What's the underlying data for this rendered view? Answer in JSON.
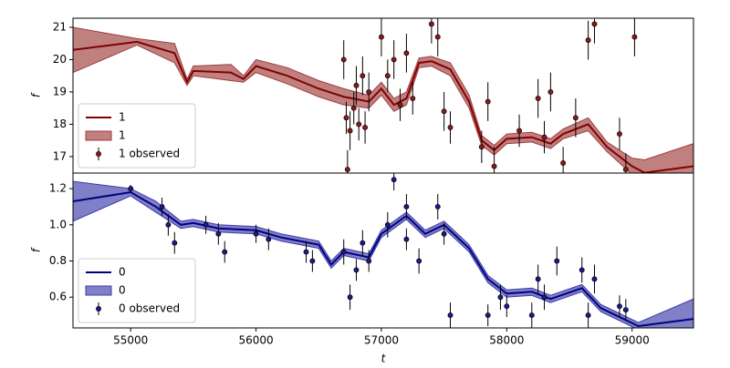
{
  "chart_data": [
    {
      "type": "line",
      "ylabel": "f",
      "xlim": [
        54540,
        59490
      ],
      "ylim": [
        16.49,
        21.28
      ],
      "yticks": [
        17,
        18,
        19,
        20,
        21
      ],
      "legend": "lower left",
      "x": [
        54540,
        55050,
        55350,
        55450,
        55500,
        55800,
        55900,
        56000,
        56250,
        56500,
        56700,
        56900,
        57000,
        57100,
        57200,
        57300,
        57400,
        57550,
        57700,
        57800,
        57900,
        58000,
        58200,
        58350,
        58450,
        58650,
        58800,
        59000,
        59100,
        59490
      ],
      "series": [
        {
          "name": "1",
          "color": "#800000",
          "values": [
            20.3,
            20.55,
            20.2,
            19.3,
            19.65,
            19.6,
            19.4,
            19.8,
            19.5,
            19.1,
            18.85,
            18.7,
            19.1,
            18.6,
            18.8,
            19.9,
            19.95,
            19.7,
            18.7,
            17.5,
            17.2,
            17.55,
            17.6,
            17.4,
            17.7,
            18.0,
            17.3,
            16.7,
            16.5,
            16.7
          ]
        },
        {
          "name": "1",
          "color": "#a03c3c",
          "lower": [
            19.6,
            20.45,
            19.9,
            19.2,
            19.5,
            19.35,
            19.3,
            19.6,
            19.25,
            18.85,
            18.6,
            18.5,
            18.9,
            18.4,
            18.6,
            19.75,
            19.8,
            19.5,
            18.5,
            17.35,
            17.05,
            17.4,
            17.45,
            17.25,
            17.55,
            17.8,
            17.15,
            16.45,
            16.1,
            15.9
          ],
          "upper": [
            21.0,
            20.65,
            20.5,
            19.4,
            19.8,
            19.85,
            19.5,
            20.0,
            19.75,
            19.35,
            19.1,
            18.9,
            19.3,
            18.8,
            19.0,
            20.05,
            20.1,
            19.9,
            18.9,
            17.65,
            17.35,
            17.7,
            17.75,
            17.55,
            17.85,
            18.2,
            17.45,
            16.95,
            16.9,
            17.4
          ]
        },
        {
          "name": "1 observed",
          "color": "#8b1a1a",
          "x": [
            56700,
            56720,
            56730,
            56750,
            56780,
            56800,
            56820,
            56850,
            56870,
            56900,
            57000,
            57050,
            57100,
            57150,
            57200,
            57250,
            57400,
            57450,
            57500,
            57550,
            57800,
            57850,
            57900,
            58100,
            58250,
            58300,
            58350,
            58450,
            58550,
            58650,
            58700,
            58900,
            58950,
            59020
          ],
          "values": [
            20.0,
            18.2,
            16.6,
            17.8,
            18.5,
            19.2,
            18.0,
            19.5,
            17.9,
            19.0,
            20.7,
            19.5,
            20.0,
            18.6,
            20.2,
            18.8,
            21.1,
            20.7,
            18.4,
            17.9,
            17.3,
            18.7,
            16.7,
            17.8,
            18.8,
            17.6,
            19.0,
            16.8,
            18.2,
            20.6,
            21.1,
            17.7,
            16.6,
            20.7
          ],
          "err": [
            0.6,
            0.5,
            0.6,
            0.6,
            0.5,
            0.6,
            0.5,
            0.6,
            0.5,
            0.6,
            0.6,
            0.5,
            0.6,
            0.5,
            0.6,
            0.5,
            0.6,
            0.6,
            0.6,
            0.5,
            0.5,
            0.6,
            0.6,
            0.5,
            0.6,
            0.5,
            0.6,
            0.5,
            0.6,
            0.6,
            0.6,
            0.5,
            0.5,
            0.6
          ]
        }
      ]
    },
    {
      "type": "line",
      "ylabel": "f",
      "xlabel": "t",
      "xlim": [
        54540,
        59490
      ],
      "ylim": [
        0.43,
        1.286
      ],
      "yticks": [
        0.6,
        0.8,
        {
          "value": 1,
          "label": "1.0"
        },
        1.2
      ],
      "xticks": [
        55000,
        56000,
        57000,
        58000,
        59000
      ],
      "legend": "lower left",
      "x": [
        54540,
        55000,
        55200,
        55400,
        55500,
        55700,
        56000,
        56200,
        56500,
        56600,
        56700,
        56900,
        57000,
        57200,
        57350,
        57500,
        57700,
        57850,
        58000,
        58200,
        58350,
        58600,
        58750,
        58900,
        59050,
        59490
      ],
      "series": [
        {
          "name": "0",
          "color": "#00007f",
          "values": [
            1.13,
            1.18,
            1.1,
            1.0,
            1.01,
            0.98,
            0.97,
            0.93,
            0.89,
            0.78,
            0.85,
            0.82,
            0.95,
            1.05,
            0.95,
            1.0,
            0.87,
            0.7,
            0.62,
            0.63,
            0.59,
            0.65,
            0.54,
            0.49,
            0.44,
            0.48
          ]
        },
        {
          "name": "0",
          "color": "#3c3cab",
          "lower": [
            1.02,
            1.16,
            1.07,
            0.98,
            0.99,
            0.96,
            0.95,
            0.91,
            0.87,
            0.76,
            0.83,
            0.8,
            0.93,
            1.03,
            0.93,
            0.98,
            0.85,
            0.68,
            0.6,
            0.61,
            0.57,
            0.63,
            0.52,
            0.47,
            0.42,
            0.37
          ],
          "upper": [
            1.24,
            1.2,
            1.13,
            1.02,
            1.03,
            1.0,
            0.99,
            0.95,
            0.91,
            0.8,
            0.87,
            0.84,
            0.97,
            1.07,
            0.97,
            1.02,
            0.89,
            0.72,
            0.64,
            0.65,
            0.61,
            0.67,
            0.56,
            0.51,
            0.46,
            0.59
          ]
        },
        {
          "name": "0 observed",
          "color": "#1a1a8b",
          "x": [
            55000,
            55250,
            55300,
            55350,
            55600,
            55700,
            55750,
            56000,
            56100,
            56400,
            56450,
            56700,
            56750,
            56800,
            56850,
            56900,
            57050,
            57100,
            57200,
            57200,
            57300,
            57450,
            57500,
            57550,
            57850,
            57950,
            58000,
            58200,
            58250,
            58300,
            58400,
            58600,
            58650,
            58700,
            58900,
            58950
          ],
          "values": [
            1.2,
            1.1,
            1.0,
            0.9,
            1.0,
            0.95,
            0.85,
            0.95,
            0.92,
            0.85,
            0.8,
            0.85,
            0.6,
            0.75,
            0.9,
            0.8,
            1.0,
            1.25,
            1.1,
            0.92,
            0.8,
            1.1,
            0.95,
            0.5,
            0.5,
            0.6,
            0.55,
            0.5,
            0.7,
            0.6,
            0.8,
            0.75,
            0.5,
            0.7,
            0.55,
            0.53
          ],
          "err": [
            0.02,
            0.05,
            0.06,
            0.06,
            0.05,
            0.06,
            0.06,
            0.05,
            0.06,
            0.06,
            0.06,
            0.07,
            0.07,
            0.06,
            0.07,
            0.06,
            0.07,
            0.06,
            0.07,
            0.06,
            0.07,
            0.07,
            0.06,
            0.07,
            0.06,
            0.07,
            0.06,
            0.07,
            0.08,
            0.07,
            0.08,
            0.07,
            0.07,
            0.08,
            0.06,
            0.06
          ]
        }
      ]
    }
  ]
}
